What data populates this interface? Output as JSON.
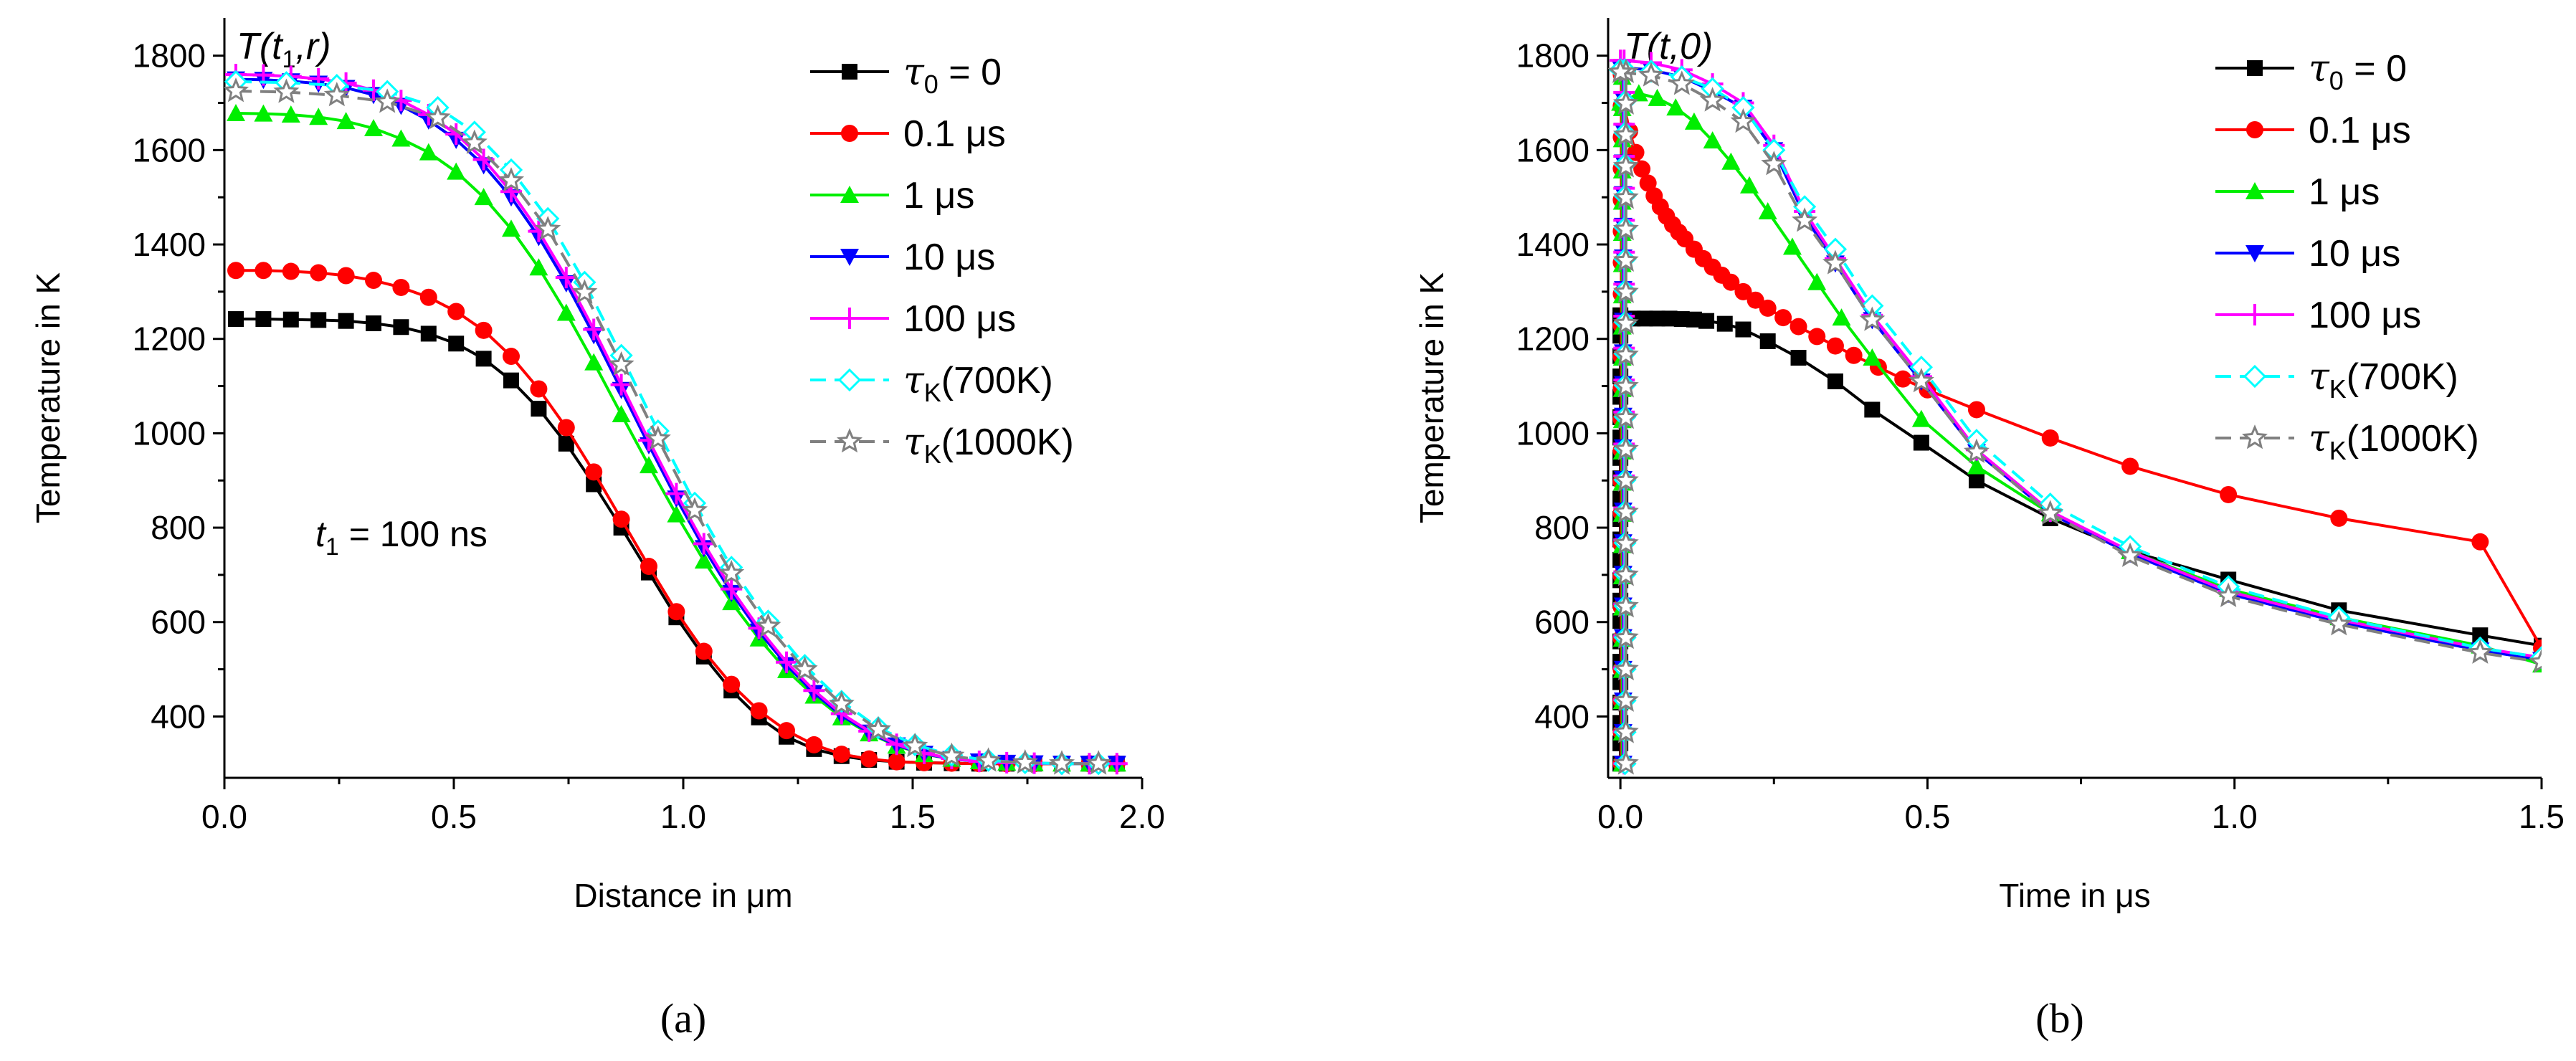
{
  "series_style": [
    {
      "name": "tau0_0",
      "color": "#000000",
      "marker": "square",
      "dash": "solid"
    },
    {
      "name": "0.1us",
      "color": "#ff0000",
      "marker": "circle",
      "dash": "solid"
    },
    {
      "name": "1us",
      "color": "#00ee00",
      "marker": "triangle",
      "dash": "solid"
    },
    {
      "name": "10us",
      "color": "#0000ff",
      "marker": "tridown",
      "dash": "solid"
    },
    {
      "name": "100us",
      "color": "#ff00ff",
      "marker": "plus",
      "dash": "solid"
    },
    {
      "name": "tauK700",
      "color": "#00ffff",
      "marker": "diamond",
      "dash": "dashed"
    },
    {
      "name": "tauK1000",
      "color": "#808080",
      "marker": "star",
      "dash": "dashed"
    }
  ],
  "chart_data": [
    {
      "type": "line",
      "panel_label": "(a)",
      "title_parts": {
        "pre": "T(t",
        "sub": "1",
        "post": ",r)"
      },
      "xlabel": "Distance in μm",
      "ylabel": "Temperature in K",
      "annotation": {
        "pre": "t",
        "sub": "1",
        "post": " = 100 ns"
      },
      "xlim": [
        0.0,
        2.0
      ],
      "ylim": [
        270,
        1880
      ],
      "xticks": [
        0.0,
        0.5,
        1.0,
        1.5,
        2.0
      ],
      "xtick_labels": [
        "0.0",
        "0.5",
        "1.0",
        "1.5",
        "2.0"
      ],
      "yticks": [
        400,
        600,
        800,
        1000,
        1200,
        1400,
        1600,
        1800
      ],
      "ytick_labels": [
        "400",
        "600",
        "800",
        "1000",
        "1200",
        "1400",
        "1600",
        "1800"
      ],
      "legend": [
        {
          "tau": true,
          "sub": "0",
          "text": " = 0"
        },
        {
          "tau": false,
          "text": "0.1 μs"
        },
        {
          "tau": false,
          "text": "1 μs"
        },
        {
          "tau": false,
          "text": "10 μs"
        },
        {
          "tau": false,
          "text": "100 μs"
        },
        {
          "tau": true,
          "sub": "K",
          "text": "(700K)"
        },
        {
          "tau": true,
          "sub": "K",
          "text": "(1000K)"
        }
      ],
      "series": [
        {
          "name": "τ0 = 0",
          "x": [
            0.025,
            0.085,
            0.145,
            0.205,
            0.265,
            0.325,
            0.385,
            0.445,
            0.505,
            0.565,
            0.625,
            0.685,
            0.745,
            0.805,
            0.865,
            0.925,
            0.985,
            1.045,
            1.105,
            1.165,
            1.225,
            1.285,
            1.345,
            1.405,
            1.465,
            1.525,
            1.585,
            1.645,
            1.705,
            1.765,
            1.825,
            1.885,
            1.945
          ],
          "y": [
            1242,
            1242,
            1241,
            1240,
            1238,
            1233,
            1225,
            1211,
            1190,
            1158,
            1112,
            1052,
            978,
            892,
            800,
            705,
            610,
            527,
            455,
            398,
            357,
            331,
            316,
            308,
            304,
            302,
            301,
            300,
            300,
            300,
            300,
            300,
            300
          ]
        },
        {
          "name": "0.1 μs",
          "x": [
            0.025,
            0.085,
            0.145,
            0.205,
            0.265,
            0.325,
            0.385,
            0.445,
            0.505,
            0.565,
            0.625,
            0.685,
            0.745,
            0.805,
            0.865,
            0.925,
            0.985,
            1.045,
            1.105,
            1.165,
            1.225,
            1.285,
            1.345,
            1.405,
            1.465,
            1.525,
            1.585,
            1.645,
            1.705,
            1.765,
            1.825,
            1.885,
            1.945
          ],
          "y": [
            1345,
            1345,
            1343,
            1340,
            1334,
            1324,
            1309,
            1288,
            1258,
            1218,
            1163,
            1094,
            1012,
            918,
            818,
            718,
            622,
            538,
            468,
            412,
            370,
            340,
            320,
            310,
            304,
            302,
            301,
            300,
            300,
            300,
            300,
            300,
            300
          ]
        },
        {
          "name": "1 μs",
          "x": [
            0.025,
            0.085,
            0.145,
            0.205,
            0.265,
            0.325,
            0.385,
            0.445,
            0.505,
            0.565,
            0.625,
            0.685,
            0.745,
            0.805,
            0.865,
            0.925,
            0.985,
            1.045,
            1.105,
            1.165,
            1.225,
            1.285,
            1.345,
            1.405,
            1.465,
            1.525,
            1.585,
            1.645,
            1.705,
            1.765,
            1.825,
            1.885,
            1.945
          ],
          "y": [
            1678,
            1677,
            1675,
            1670,
            1661,
            1646,
            1624,
            1595,
            1554,
            1500,
            1433,
            1351,
            1255,
            1150,
            1040,
            932,
            828,
            730,
            642,
            565,
            498,
            444,
            398,
            364,
            338,
            320,
            310,
            305,
            302,
            301,
            300,
            300,
            300
          ]
        },
        {
          "name": "10 μs",
          "x": [
            0.025,
            0.085,
            0.145,
            0.205,
            0.265,
            0.325,
            0.385,
            0.445,
            0.505,
            0.565,
            0.625,
            0.685,
            0.745,
            0.805,
            0.865,
            0.925,
            0.985,
            1.045,
            1.105,
            1.165,
            1.225,
            1.285,
            1.345,
            1.405,
            1.465,
            1.525,
            1.585,
            1.645,
            1.705,
            1.765,
            1.825,
            1.885,
            1.945
          ],
          "y": [
            1750,
            1749,
            1746,
            1741,
            1732,
            1717,
            1694,
            1663,
            1622,
            1568,
            1500,
            1416,
            1318,
            1208,
            1092,
            975,
            862,
            757,
            662,
            580,
            509,
            450,
            402,
            366,
            339,
            321,
            310,
            305,
            302,
            301,
            300,
            300,
            300
          ]
        },
        {
          "name": "100 μs",
          "x": [
            0.025,
            0.085,
            0.145,
            0.205,
            0.265,
            0.325,
            0.385,
            0.445,
            0.505,
            0.565,
            0.625,
            0.685,
            0.745,
            0.805,
            0.865,
            0.925,
            0.985,
            1.045,
            1.105,
            1.165,
            1.225,
            1.285,
            1.345,
            1.405,
            1.465,
            1.525,
            1.585,
            1.645,
            1.705,
            1.765,
            1.825,
            1.885,
            1.945
          ],
          "y": [
            1760,
            1759,
            1756,
            1751,
            1742,
            1727,
            1705,
            1675,
            1634,
            1580,
            1512,
            1428,
            1330,
            1220,
            1103,
            985,
            872,
            766,
            670,
            587,
            515,
            455,
            406,
            369,
            341,
            322,
            311,
            305,
            302,
            301,
            300,
            300,
            300
          ]
        },
        {
          "name": "τK(700K)",
          "x": [
            0.025,
            0.135,
            0.245,
            0.355,
            0.465,
            0.545,
            0.625,
            0.705,
            0.785,
            0.865,
            0.945,
            1.025,
            1.105,
            1.185,
            1.265,
            1.345,
            1.425,
            1.505,
            1.585,
            1.665,
            1.745,
            1.825,
            1.905
          ],
          "y": [
            1745,
            1743,
            1737,
            1724,
            1690,
            1638,
            1558,
            1455,
            1320,
            1165,
            1005,
            852,
            716,
            602,
            508,
            432,
            376,
            340,
            318,
            307,
            302,
            300,
            300
          ]
        },
        {
          "name": "τK(1000K)",
          "x": [
            0.025,
            0.135,
            0.245,
            0.355,
            0.465,
            0.545,
            0.625,
            0.705,
            0.785,
            0.865,
            0.945,
            1.025,
            1.105,
            1.185,
            1.265,
            1.345,
            1.425,
            1.505,
            1.585,
            1.665,
            1.745,
            1.825,
            1.905
          ],
          "y": [
            1725,
            1723,
            1716,
            1702,
            1668,
            1615,
            1535,
            1432,
            1298,
            1145,
            988,
            836,
            703,
            591,
            499,
            426,
            372,
            337,
            316,
            306,
            302,
            300,
            300
          ]
        }
      ]
    },
    {
      "type": "line",
      "panel_label": "(b)",
      "title_parts": {
        "pre": "T(t,0)",
        "sub": "",
        "post": ""
      },
      "xlabel": "Time in μs",
      "ylabel": "Temperature in K",
      "xlim": [
        -0.02,
        1.5
      ],
      "ylim": [
        270,
        1880
      ],
      "xticks": [
        0.0,
        0.5,
        1.0,
        1.5
      ],
      "xtick_labels": [
        "0.0",
        "0.5",
        "1.0",
        "1.5"
      ],
      "yticks": [
        400,
        600,
        800,
        1000,
        1200,
        1400,
        1600,
        1800
      ],
      "ytick_labels": [
        "400",
        "600",
        "800",
        "1000",
        "1200",
        "1400",
        "1600",
        "1800"
      ],
      "legend": [
        {
          "tau": true,
          "sub": "0",
          "text": " = 0"
        },
        {
          "tau": false,
          "text": "0.1 μs"
        },
        {
          "tau": false,
          "text": "1 μs"
        },
        {
          "tau": false,
          "text": "10 μs"
        },
        {
          "tau": false,
          "text": "100 μs"
        },
        {
          "tau": true,
          "sub": "K",
          "text": "(700K)"
        },
        {
          "tau": true,
          "sub": "K",
          "text": "(1000K)"
        }
      ],
      "rise_tmax": {
        "tau0_0": 1250,
        "0.1us": 1760,
        "1us": 1755,
        "10us": 1775,
        "100us": 1790,
        "tauK700": 1770,
        "tauK1000": 1765
      },
      "series": [
        {
          "name": "τ0 = 0",
          "x": [
            0.0,
            0.02,
            0.04,
            0.06,
            0.08,
            0.1,
            0.12,
            0.14,
            0.17,
            0.2,
            0.24,
            0.29,
            0.35,
            0.41,
            0.49,
            0.58,
            0.7,
            0.83,
            0.99,
            1.17,
            1.4,
            1.5
          ],
          "y": [
            1240,
            1243,
            1243,
            1243,
            1243,
            1242,
            1241,
            1238,
            1232,
            1220,
            1195,
            1160,
            1110,
            1050,
            980,
            900,
            820,
            750,
            690,
            625,
            572,
            550
          ]
        },
        {
          "name": "0.1 μs",
          "x": [
            0.005,
            0.015,
            0.025,
            0.035,
            0.045,
            0.055,
            0.065,
            0.075,
            0.085,
            0.095,
            0.105,
            0.12,
            0.135,
            0.15,
            0.165,
            0.18,
            0.2,
            0.22,
            0.24,
            0.265,
            0.29,
            0.32,
            0.35,
            0.38,
            0.42,
            0.46,
            0.5,
            0.58,
            0.7,
            0.83,
            0.99,
            1.17,
            1.4,
            1.5
          ],
          "y": [
            1700,
            1640,
            1595,
            1560,
            1530,
            1503,
            1480,
            1460,
            1442,
            1426,
            1412,
            1390,
            1370,
            1352,
            1335,
            1320,
            1300,
            1282,
            1265,
            1245,
            1226,
            1205,
            1185,
            1165,
            1140,
            1115,
            1092,
            1050,
            990,
            930,
            870,
            820,
            770,
            545
          ]
        },
        {
          "name": "1 μs",
          "x": [
            0.0,
            0.03,
            0.06,
            0.09,
            0.12,
            0.15,
            0.18,
            0.21,
            0.24,
            0.28,
            0.32,
            0.36,
            0.41,
            0.49,
            0.58,
            0.7,
            0.83,
            0.99,
            1.17,
            1.4,
            1.5
          ],
          "y": [
            1700,
            1720,
            1710,
            1690,
            1660,
            1620,
            1575,
            1525,
            1470,
            1395,
            1320,
            1245,
            1160,
            1030,
            930,
            830,
            750,
            670,
            610,
            550,
            510
          ]
        },
        {
          "name": "10 μs",
          "x": [
            0.0,
            0.05,
            0.1,
            0.15,
            0.2,
            0.25,
            0.3,
            0.35,
            0.41,
            0.49,
            0.58,
            0.7,
            0.83,
            0.99,
            1.17,
            1.4,
            1.5
          ],
          "y": [
            1775,
            1770,
            1755,
            1725,
            1690,
            1600,
            1460,
            1360,
            1240,
            1110,
            960,
            830,
            745,
            660,
            600,
            540,
            520
          ]
        },
        {
          "name": "100 μs",
          "x": [
            0.0,
            0.05,
            0.1,
            0.15,
            0.2,
            0.25,
            0.3,
            0.35,
            0.41,
            0.49,
            0.58,
            0.7,
            0.83,
            0.99,
            1.17,
            1.4,
            1.5
          ],
          "y": [
            1790,
            1785,
            1770,
            1740,
            1700,
            1610,
            1470,
            1370,
            1250,
            1120,
            965,
            835,
            750,
            665,
            605,
            545,
            525
          ]
        },
        {
          "name": "τK(700K)",
          "x": [
            0.0,
            0.05,
            0.1,
            0.15,
            0.2,
            0.25,
            0.3,
            0.35,
            0.41,
            0.49,
            0.58,
            0.7,
            0.83,
            0.99,
            1.17,
            1.4,
            1.5
          ],
          "y": [
            1770,
            1767,
            1755,
            1730,
            1690,
            1600,
            1480,
            1390,
            1270,
            1140,
            985,
            850,
            760,
            675,
            610,
            545,
            525
          ]
        },
        {
          "name": "τK(1000K)",
          "x": [
            0.0,
            0.05,
            0.1,
            0.15,
            0.2,
            0.25,
            0.3,
            0.35,
            0.41,
            0.49,
            0.58,
            0.7,
            0.83,
            0.99,
            1.17,
            1.4,
            1.5
          ],
          "y": [
            1765,
            1758,
            1740,
            1705,
            1660,
            1570,
            1450,
            1360,
            1240,
            1110,
            960,
            830,
            740,
            655,
            595,
            535,
            515
          ]
        }
      ]
    }
  ]
}
